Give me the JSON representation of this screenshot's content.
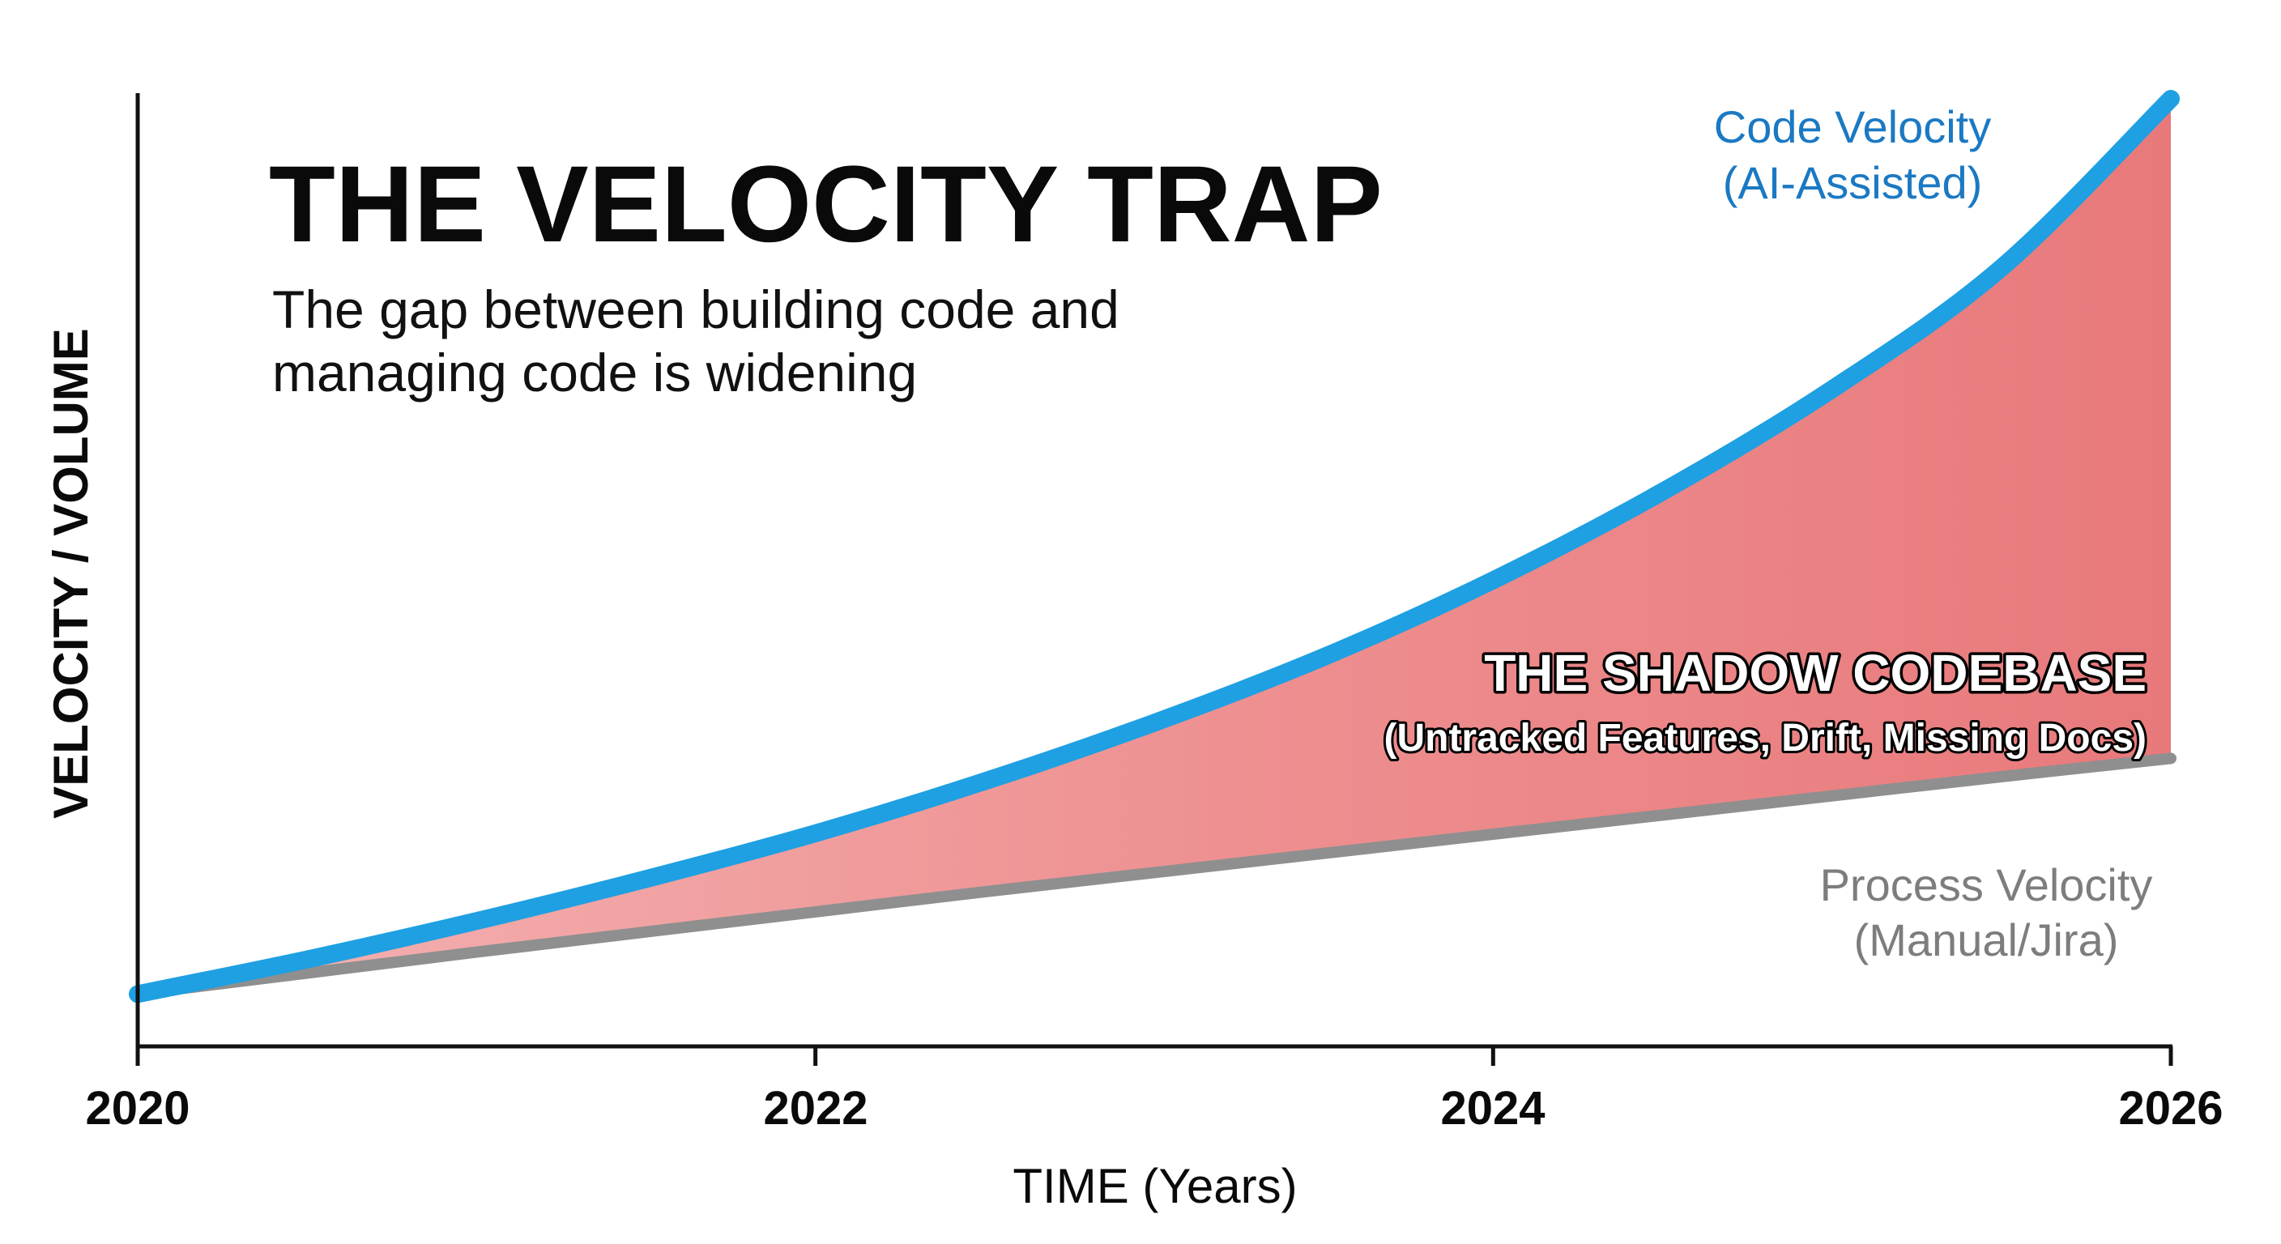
{
  "chart_data": {
    "type": "area",
    "title": "THE VELOCITY TRAP",
    "subtitle_lines": [
      "The gap between building code and",
      "managing code is widening"
    ],
    "xlabel": "TIME (Years)",
    "ylabel": "VELOCITY / VOLUME",
    "xlim": [
      2020,
      2026
    ],
    "ylim": [
      0,
      100
    ],
    "x_ticks": [
      "2020",
      "2022",
      "2024",
      "2026"
    ],
    "grid": false,
    "series": [
      {
        "name": "Code Velocity",
        "name_line2": "(AI-Assisted)",
        "color": "#1ea0e2",
        "x": [
          2020,
          2020.5,
          2021,
          2021.5,
          2022,
          2022.5,
          2023,
          2023.5,
          2024,
          2024.5,
          2025,
          2025.5,
          2026
        ],
        "values": [
          2,
          5.8,
          10,
          14.6,
          19.6,
          25.3,
          31.7,
          38.9,
          47.3,
          57,
          68.2,
          81.5,
          100
        ]
      },
      {
        "name": "Process Velocity",
        "name_line2": "(Manual/Jira)",
        "color": "#8f8f8f",
        "x": [
          2020,
          2020.5,
          2021,
          2021.5,
          2022,
          2022.5,
          2023,
          2023.5,
          2024,
          2024.5,
          2025,
          2025.5,
          2026
        ],
        "values": [
          2,
          4.3,
          6.6,
          8.8,
          11,
          13.2,
          15.3,
          17.4,
          19.5,
          21.6,
          23.7,
          25.8,
          27.8
        ]
      }
    ],
    "gap_fill_color": "#e9787a",
    "annotation": {
      "title": "THE SHADOW CODEBASE",
      "subtitle": "(Untracked Features, Drift, Missing Docs)"
    }
  }
}
